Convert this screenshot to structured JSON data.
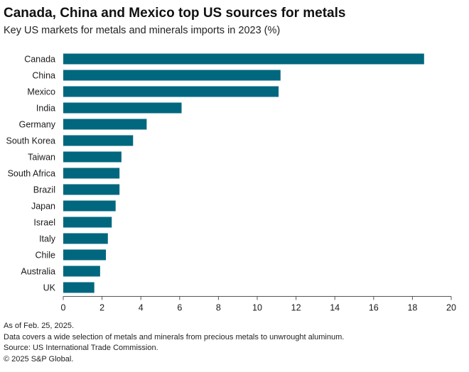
{
  "chart_data": {
    "type": "bar",
    "orientation": "horizontal",
    "title": "Canada, China and Mexico top US sources for metals",
    "subtitle": "Key US markets for metals and minerals imports in 2023 (%)",
    "categories": [
      "Canada",
      "China",
      "Mexico",
      "India",
      "Germany",
      "South Korea",
      "Taiwan",
      "South Africa",
      "Brazil",
      "Japan",
      "Israel",
      "Italy",
      "Chile",
      "Australia",
      "UK"
    ],
    "values": [
      18.6,
      11.2,
      11.1,
      6.1,
      4.3,
      3.6,
      3.0,
      2.9,
      2.9,
      2.7,
      2.5,
      2.3,
      2.2,
      1.9,
      1.6
    ],
    "xlim": [
      0,
      20
    ],
    "xticks": [
      "0",
      "2",
      "4",
      "6",
      "8",
      "10",
      "12",
      "14",
      "16",
      "18",
      "20"
    ],
    "bar_color": "#00677f",
    "grid": false
  },
  "footnotes": {
    "date": "As of Feb. 25, 2025.",
    "coverage": "Data covers a wide selection of metals and minerals from precious metals to unwrought aluminum.",
    "source": "Source: US International Trade Commission.",
    "copyright": "© 2025 S&P Global."
  }
}
